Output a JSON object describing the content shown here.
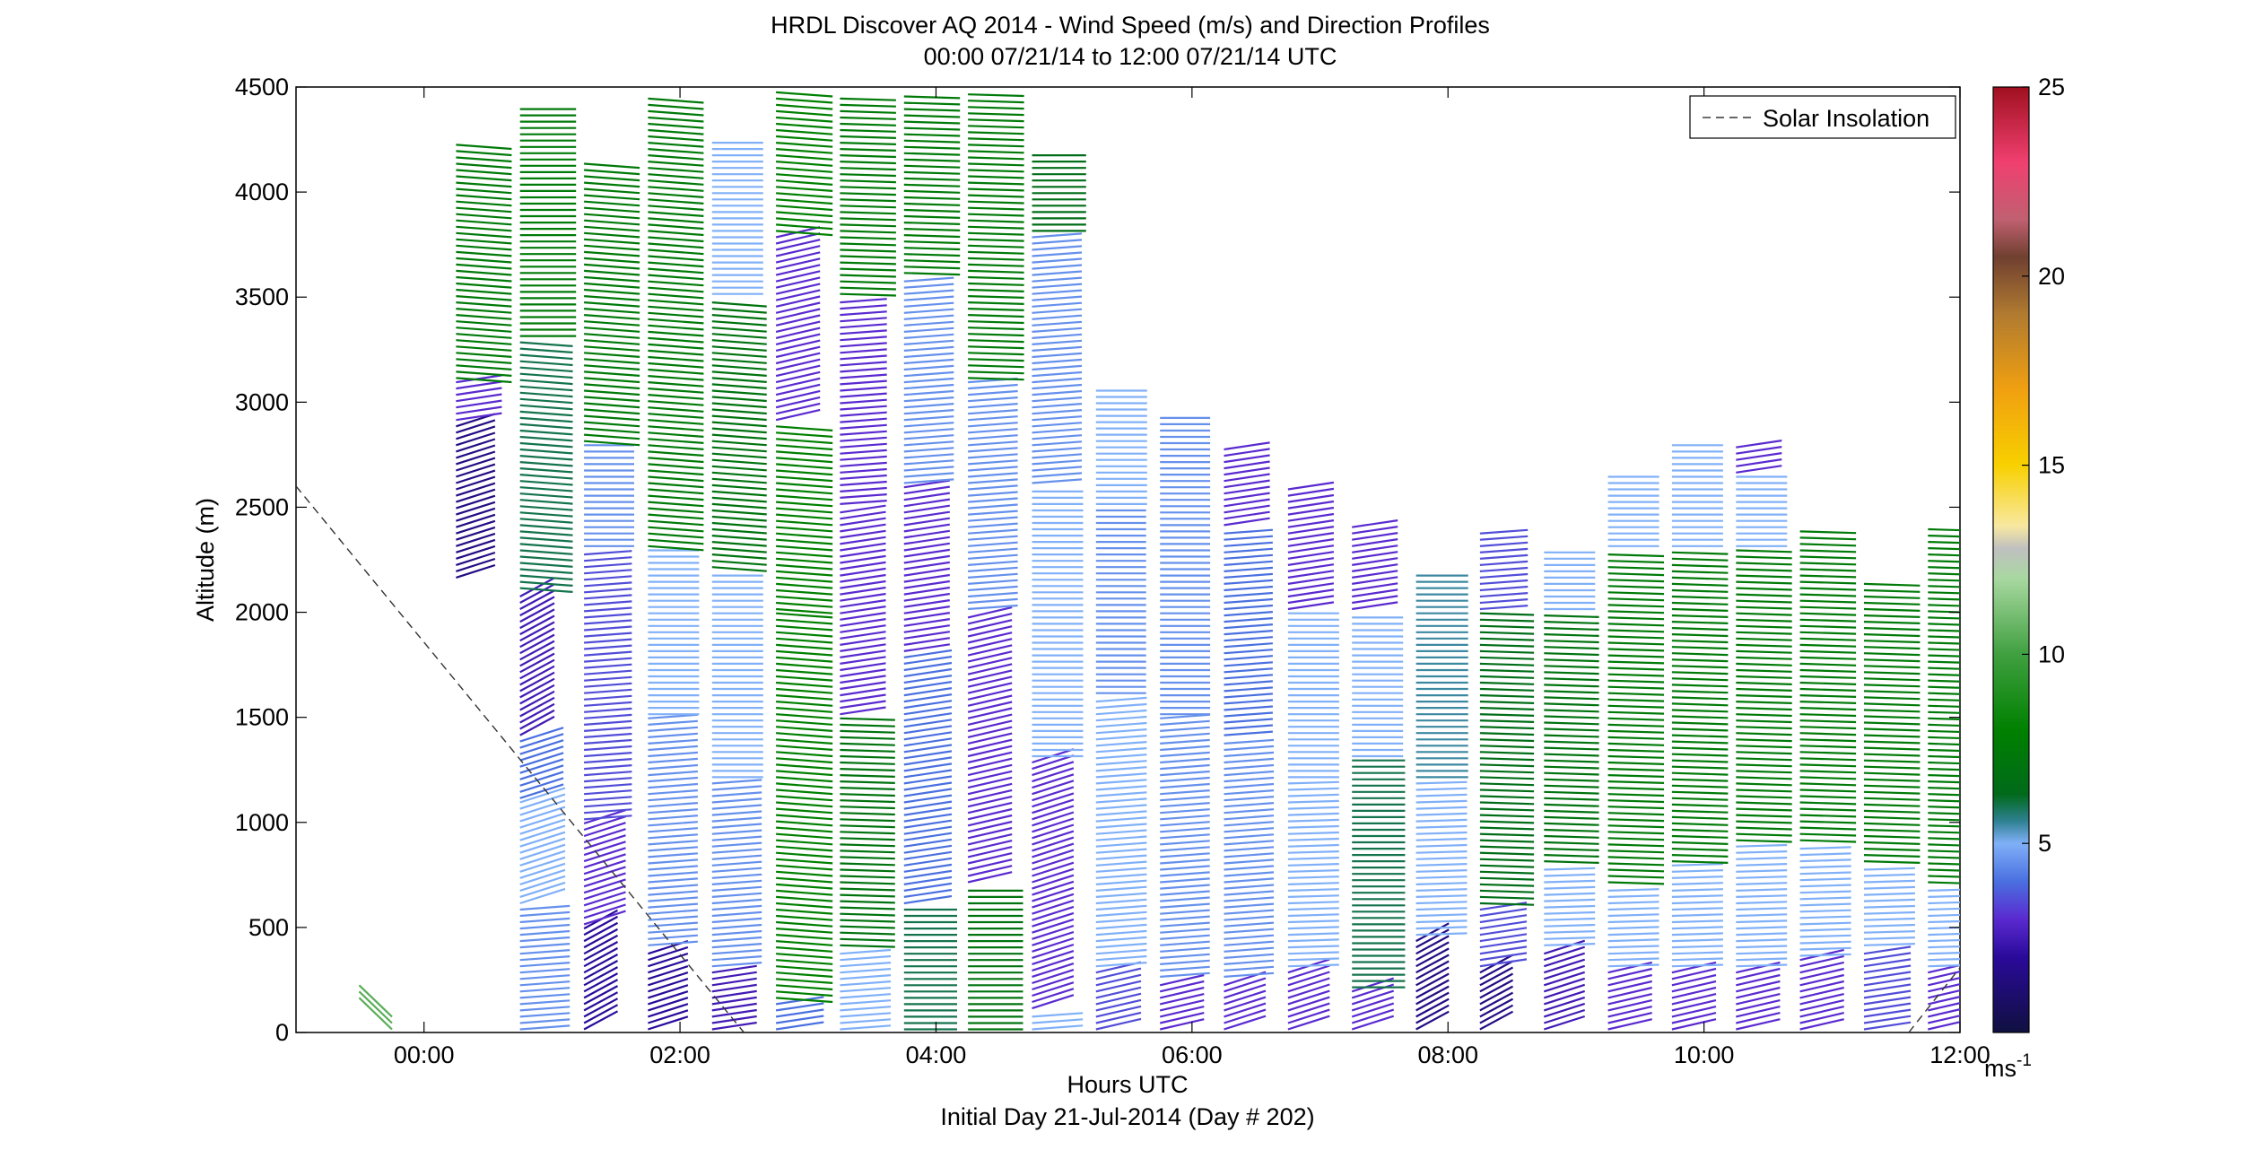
{
  "chart_data": {
    "type": "wind-barb-profile",
    "title": "HRDL Discover AQ 2014 - Wind Speed (m/s) and Direction Profiles",
    "subtitle": "00:00 07/21/14 to 12:00 07/21/14  UTC",
    "xlabel": "Hours UTC",
    "xlabel2": "Initial Day 21-Jul-2014 (Day # 202)",
    "ylabel": "Altitude (m)",
    "xlim": [
      -1.0,
      12.0
    ],
    "ylim": [
      0,
      4500
    ],
    "x_ticks": [
      {
        "v": 0,
        "label": "00:00"
      },
      {
        "v": 2,
        "label": "02:00"
      },
      {
        "v": 4,
        "label": "04:00"
      },
      {
        "v": 6,
        "label": "06:00"
      },
      {
        "v": 8,
        "label": "08:00"
      },
      {
        "v": 10,
        "label": "10:00"
      },
      {
        "v": 12,
        "label": "12:00"
      }
    ],
    "y_ticks": [
      0,
      500,
      1000,
      1500,
      2000,
      2500,
      3000,
      3500,
      4000,
      4500
    ],
    "legend": {
      "label": "Solar Insolation",
      "position": "top-right"
    },
    "solar_insolation": [
      {
        "t": -1.0,
        "alt": 2600
      },
      {
        "t": 2.5,
        "alt": 0
      },
      {
        "t": 11.6,
        "alt": 0
      },
      {
        "t": 12.95,
        "alt": 1040
      }
    ],
    "colorbar": {
      "range": [
        0,
        25
      ],
      "ticks": [
        5,
        10,
        15,
        20,
        25
      ],
      "unit_label": "ms",
      "unit_exp": "-1",
      "stops": [
        {
          "v": 0.0,
          "c": "#101040"
        },
        {
          "v": 2.0,
          "c": "#2a0a9a"
        },
        {
          "v": 3.0,
          "c": "#5a2ad0"
        },
        {
          "v": 4.0,
          "c": "#4a70e0"
        },
        {
          "v": 5.0,
          "c": "#80b0f8"
        },
        {
          "v": 5.6,
          "c": "#2e8090"
        },
        {
          "v": 6.3,
          "c": "#006a1a"
        },
        {
          "v": 8.0,
          "c": "#008000"
        },
        {
          "v": 10.0,
          "c": "#40a040"
        },
        {
          "v": 12.0,
          "c": "#a8d8a0"
        },
        {
          "v": 12.8,
          "c": "#c0c0c0"
        },
        {
          "v": 13.4,
          "c": "#f8e8a0"
        },
        {
          "v": 15.0,
          "c": "#f8d000"
        },
        {
          "v": 17.0,
          "c": "#f0a010"
        },
        {
          "v": 19.0,
          "c": "#b07a30"
        },
        {
          "v": 20.5,
          "c": "#704030"
        },
        {
          "v": 21.5,
          "c": "#c06070"
        },
        {
          "v": 23.0,
          "c": "#f04070"
        },
        {
          "v": 25.0,
          "c": "#a01020"
        }
      ]
    },
    "profiles": [
      {
        "t": -0.25,
        "top": 100,
        "segments": [
          {
            "from": 0,
            "to": 100,
            "speed": 10.5,
            "dir": 10
          }
        ]
      },
      {
        "t": 0.25,
        "top": 4240,
        "segments": [
          {
            "from": 2150,
            "to": 2900,
            "speed": 1.5,
            "dir": 200
          },
          {
            "from": 2900,
            "to": 3100,
            "speed": 3.0,
            "dir": 190
          },
          {
            "from": 3100,
            "to": 4240,
            "speed": 7.5,
            "dir": 175
          }
        ]
      },
      {
        "t": 0.75,
        "top": 4420,
        "segments": [
          {
            "from": 0,
            "to": 600,
            "speed": 4.5,
            "dir": 185
          },
          {
            "from": 600,
            "to": 1100,
            "speed": 5.0,
            "dir": 200
          },
          {
            "from": 1100,
            "to": 1400,
            "speed": 4.0,
            "dir": 200
          },
          {
            "from": 1400,
            "to": 2100,
            "speed": 2.5,
            "dir": 210
          },
          {
            "from": 2100,
            "to": 3300,
            "speed": 6.0,
            "dir": 175
          },
          {
            "from": 3300,
            "to": 4420,
            "speed": 7.5,
            "dir": 180
          }
        ]
      },
      {
        "t": 1.25,
        "top": 4160,
        "segments": [
          {
            "from": 0,
            "to": 500,
            "speed": 2.0,
            "dir": 210
          },
          {
            "from": 500,
            "to": 1000,
            "speed": 3.0,
            "dir": 200
          },
          {
            "from": 1000,
            "to": 2300,
            "speed": 3.5,
            "dir": 185
          },
          {
            "from": 2300,
            "to": 2800,
            "speed": 4.5,
            "dir": 180
          },
          {
            "from": 2800,
            "to": 4160,
            "speed": 7.5,
            "dir": 175
          }
        ]
      },
      {
        "t": 1.75,
        "top": 4470,
        "segments": [
          {
            "from": 0,
            "to": 400,
            "speed": 2.0,
            "dir": 200
          },
          {
            "from": 400,
            "to": 1500,
            "speed": 4.5,
            "dir": 185
          },
          {
            "from": 1500,
            "to": 2300,
            "speed": 5.0,
            "dir": 180
          },
          {
            "from": 2300,
            "to": 4470,
            "speed": 7.5,
            "dir": 175
          }
        ]
      },
      {
        "t": 2.25,
        "top": 4260,
        "segments": [
          {
            "from": 0,
            "to": 300,
            "speed": 2.5,
            "dir": 190
          },
          {
            "from": 300,
            "to": 1200,
            "speed": 4.5,
            "dir": 185
          },
          {
            "from": 1200,
            "to": 2200,
            "speed": 5.0,
            "dir": 180
          },
          {
            "from": 2200,
            "to": 3500,
            "speed": 7.0,
            "dir": 175
          },
          {
            "from": 3500,
            "to": 4260,
            "speed": 5.0,
            "dir": 180
          }
        ]
      },
      {
        "t": 2.75,
        "top": 4500,
        "segments": [
          {
            "from": 0,
            "to": 150,
            "speed": 4.0,
            "dir": 190
          },
          {
            "from": 150,
            "to": 2000,
            "speed": 8.0,
            "dir": 175
          },
          {
            "from": 2000,
            "to": 2900,
            "speed": 8.0,
            "dir": 175
          },
          {
            "from": 2900,
            "to": 3800,
            "speed": 3.0,
            "dir": 195
          },
          {
            "from": 3800,
            "to": 4500,
            "speed": 8.0,
            "dir": 175
          }
        ]
      },
      {
        "t": 3.25,
        "top": 4470,
        "segments": [
          {
            "from": 0,
            "to": 400,
            "speed": 5.0,
            "dir": 185
          },
          {
            "from": 400,
            "to": 1500,
            "speed": 7.0,
            "dir": 178
          },
          {
            "from": 1500,
            "to": 2500,
            "speed": 3.0,
            "dir": 190
          },
          {
            "from": 2500,
            "to": 3500,
            "speed": 3.0,
            "dir": 185
          },
          {
            "from": 3500,
            "to": 4470,
            "speed": 7.5,
            "dir": 178
          }
        ]
      },
      {
        "t": 3.75,
        "top": 4460,
        "segments": [
          {
            "from": 0,
            "to": 600,
            "speed": 6.0,
            "dir": 180
          },
          {
            "from": 600,
            "to": 1800,
            "speed": 4.0,
            "dir": 190
          },
          {
            "from": 1800,
            "to": 2600,
            "speed": 3.0,
            "dir": 190
          },
          {
            "from": 2600,
            "to": 3600,
            "speed": 4.5,
            "dir": 185
          },
          {
            "from": 3600,
            "to": 4460,
            "speed": 7.5,
            "dir": 178
          }
        ]
      },
      {
        "t": 4.25,
        "top": 4470,
        "segments": [
          {
            "from": 0,
            "to": 700,
            "speed": 7.0,
            "dir": 180
          },
          {
            "from": 700,
            "to": 2000,
            "speed": 3.0,
            "dir": 195
          },
          {
            "from": 2000,
            "to": 3100,
            "speed": 4.5,
            "dir": 185
          },
          {
            "from": 3100,
            "to": 4470,
            "speed": 7.5,
            "dir": 178
          }
        ]
      },
      {
        "t": 4.75,
        "top": 4200,
        "segments": [
          {
            "from": 0,
            "to": 100,
            "speed": 5.0,
            "dir": 185
          },
          {
            "from": 100,
            "to": 1300,
            "speed": 3.0,
            "dir": 200
          },
          {
            "from": 1300,
            "to": 2600,
            "speed": 5.0,
            "dir": 180
          },
          {
            "from": 2600,
            "to": 3800,
            "speed": 4.5,
            "dir": 185
          },
          {
            "from": 3800,
            "to": 4200,
            "speed": 6.5,
            "dir": 180
          }
        ]
      },
      {
        "t": 5.25,
        "top": 3080,
        "segments": [
          {
            "from": 0,
            "to": 300,
            "speed": 3.5,
            "dir": 195
          },
          {
            "from": 300,
            "to": 1600,
            "speed": 5.0,
            "dir": 185
          },
          {
            "from": 1600,
            "to": 2500,
            "speed": 4.5,
            "dir": 180
          },
          {
            "from": 2500,
            "to": 3080,
            "speed": 5.0,
            "dir": 180
          }
        ]
      },
      {
        "t": 5.75,
        "top": 2930,
        "segments": [
          {
            "from": 0,
            "to": 250,
            "speed": 3.0,
            "dir": 195
          },
          {
            "from": 250,
            "to": 1500,
            "speed": 4.5,
            "dir": 185
          },
          {
            "from": 1500,
            "to": 2930,
            "speed": 4.5,
            "dir": 180
          }
        ]
      },
      {
        "t": 6.25,
        "top": 2800,
        "segments": [
          {
            "from": 0,
            "to": 250,
            "speed": 3.0,
            "dir": 200
          },
          {
            "from": 250,
            "to": 1400,
            "speed": 4.5,
            "dir": 185
          },
          {
            "from": 1400,
            "to": 2400,
            "speed": 4.0,
            "dir": 185
          },
          {
            "from": 2400,
            "to": 2800,
            "speed": 3.0,
            "dir": 190
          }
        ]
      },
      {
        "t": 6.75,
        "top": 2600,
        "segments": [
          {
            "from": 0,
            "to": 300,
            "speed": 3.0,
            "dir": 200
          },
          {
            "from": 300,
            "to": 1200,
            "speed": 5.0,
            "dir": 182
          },
          {
            "from": 1200,
            "to": 2000,
            "speed": 5.0,
            "dir": 180
          },
          {
            "from": 2000,
            "to": 2600,
            "speed": 3.0,
            "dir": 190
          }
        ]
      },
      {
        "t": 7.25,
        "top": 2420,
        "segments": [
          {
            "from": 0,
            "to": 200,
            "speed": 3.0,
            "dir": 200
          },
          {
            "from": 200,
            "to": 1300,
            "speed": 6.0,
            "dir": 180
          },
          {
            "from": 1300,
            "to": 2000,
            "speed": 5.0,
            "dir": 180
          },
          {
            "from": 2000,
            "to": 2420,
            "speed": 3.0,
            "dir": 190
          }
        ]
      },
      {
        "t": 7.75,
        "top": 2180,
        "segments": [
          {
            "from": 0,
            "to": 450,
            "speed": 1.5,
            "dir": 210
          },
          {
            "from": 450,
            "to": 1200,
            "speed": 5.0,
            "dir": 182
          },
          {
            "from": 1200,
            "to": 2180,
            "speed": 5.5,
            "dir": 180
          }
        ]
      },
      {
        "t": 8.25,
        "top": 2400,
        "segments": [
          {
            "from": 0,
            "to": 300,
            "speed": 1.5,
            "dir": 210
          },
          {
            "from": 300,
            "to": 600,
            "speed": 3.5,
            "dir": 190
          },
          {
            "from": 600,
            "to": 2000,
            "speed": 6.5,
            "dir": 178
          },
          {
            "from": 2000,
            "to": 2400,
            "speed": 3.5,
            "dir": 185
          }
        ]
      },
      {
        "t": 8.75,
        "top": 2300,
        "segments": [
          {
            "from": 0,
            "to": 400,
            "speed": 2.5,
            "dir": 200
          },
          {
            "from": 400,
            "to": 800,
            "speed": 5.0,
            "dir": 182
          },
          {
            "from": 800,
            "to": 2000,
            "speed": 7.0,
            "dir": 178
          },
          {
            "from": 2000,
            "to": 2300,
            "speed": 5.0,
            "dir": 180
          }
        ]
      },
      {
        "t": 9.25,
        "top": 2660,
        "segments": [
          {
            "from": 0,
            "to": 300,
            "speed": 3.0,
            "dir": 195
          },
          {
            "from": 300,
            "to": 700,
            "speed": 5.0,
            "dir": 182
          },
          {
            "from": 700,
            "to": 2300,
            "speed": 7.5,
            "dir": 178
          },
          {
            "from": 2300,
            "to": 2660,
            "speed": 5.0,
            "dir": 180
          }
        ]
      },
      {
        "t": 9.75,
        "top": 2800,
        "segments": [
          {
            "from": 0,
            "to": 300,
            "speed": 3.0,
            "dir": 195
          },
          {
            "from": 300,
            "to": 800,
            "speed": 5.0,
            "dir": 182
          },
          {
            "from": 800,
            "to": 2300,
            "speed": 7.5,
            "dir": 178
          },
          {
            "from": 2300,
            "to": 2800,
            "speed": 5.0,
            "dir": 180
          }
        ]
      },
      {
        "t": 10.25,
        "top": 2790,
        "segments": [
          {
            "from": 0,
            "to": 300,
            "speed": 3.0,
            "dir": 195
          },
          {
            "from": 300,
            "to": 900,
            "speed": 5.0,
            "dir": 182
          },
          {
            "from": 900,
            "to": 2300,
            "speed": 7.5,
            "dir": 178
          },
          {
            "from": 2300,
            "to": 2650,
            "speed": 5.0,
            "dir": 180
          },
          {
            "from": 2650,
            "to": 2790,
            "speed": 3.0,
            "dir": 190
          }
        ]
      },
      {
        "t": 10.75,
        "top": 2410,
        "segments": [
          {
            "from": 0,
            "to": 350,
            "speed": 3.0,
            "dir": 195
          },
          {
            "from": 350,
            "to": 900,
            "speed": 5.0,
            "dir": 182
          },
          {
            "from": 900,
            "to": 2410,
            "speed": 7.5,
            "dir": 178
          }
        ]
      },
      {
        "t": 11.25,
        "top": 2140,
        "segments": [
          {
            "from": 0,
            "to": 400,
            "speed": 3.5,
            "dir": 190
          },
          {
            "from": 400,
            "to": 800,
            "speed": 5.0,
            "dir": 182
          },
          {
            "from": 800,
            "to": 2140,
            "speed": 7.5,
            "dir": 178
          }
        ]
      },
      {
        "t": 11.75,
        "top": 2410,
        "segments": [
          {
            "from": 0,
            "to": 300,
            "speed": 3.0,
            "dir": 195
          },
          {
            "from": 300,
            "to": 700,
            "speed": 5.0,
            "dir": 182
          },
          {
            "from": 700,
            "to": 2410,
            "speed": 7.5,
            "dir": 178
          }
        ]
      }
    ]
  }
}
